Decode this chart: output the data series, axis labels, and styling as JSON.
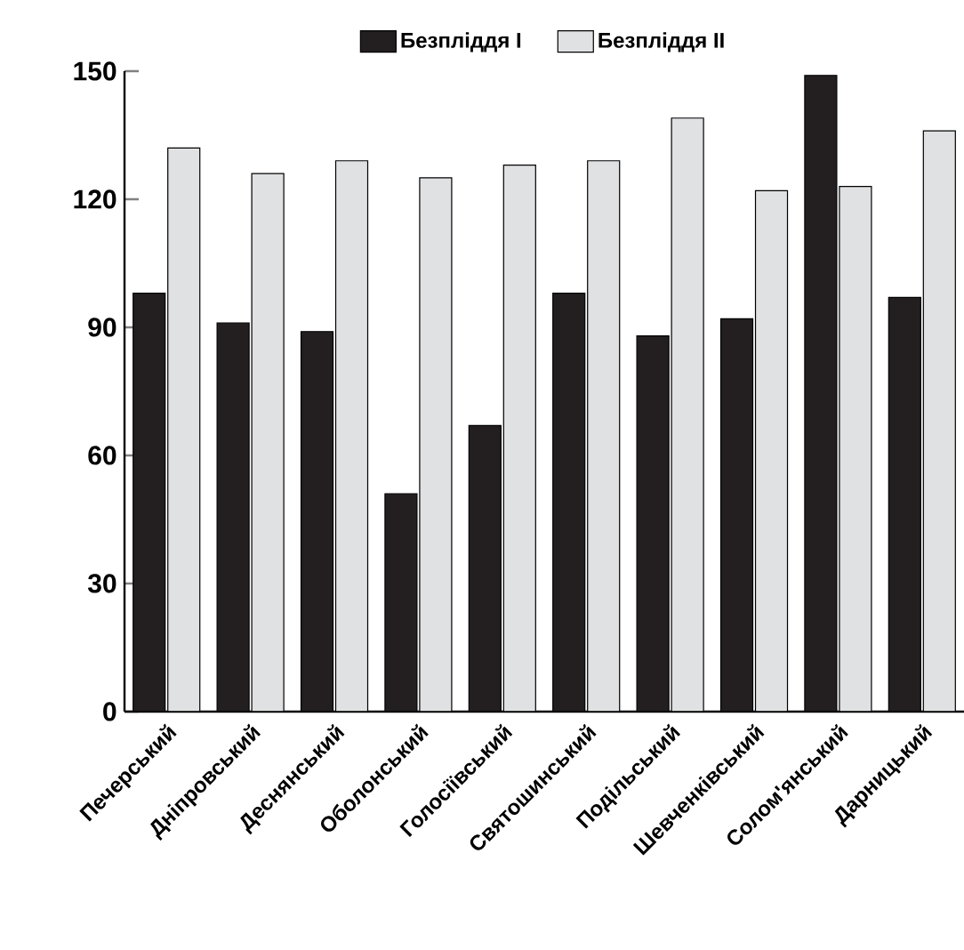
{
  "chart_data": {
    "type": "bar",
    "categories": [
      "Печерський",
      "Дніпровський",
      "Деснянський",
      "Оболонський",
      "Голосіївський",
      "Святошинський",
      "Подільський",
      "Шевченківський",
      "Солом'янський",
      "Дарницький"
    ],
    "series": [
      {
        "name": "Безпліддя I",
        "color": "#231f20",
        "values": [
          98,
          91,
          89,
          51,
          67,
          98,
          88,
          92,
          149,
          97
        ]
      },
      {
        "name": "Безпліддя II",
        "color": "#e0e1e3",
        "values": [
          132,
          126,
          129,
          125,
          128,
          129,
          139,
          122,
          123,
          136
        ]
      }
    ],
    "ylim": [
      0,
      150
    ],
    "yticks": [
      0,
      30,
      60,
      90,
      120,
      150
    ],
    "legend": "top",
    "grid": false
  }
}
